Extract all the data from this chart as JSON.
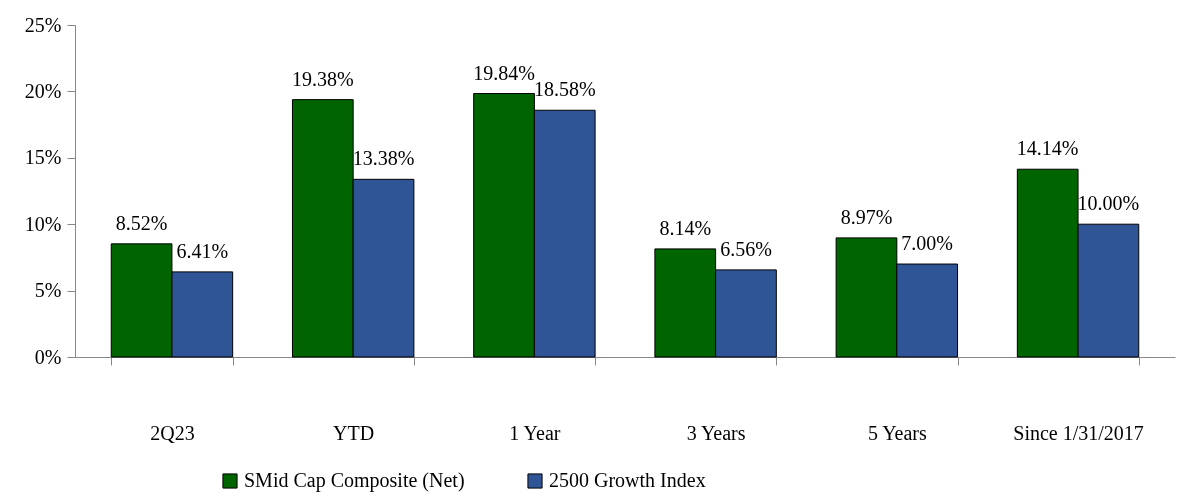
{
  "chart_data": {
    "type": "bar",
    "categories": [
      "2Q23",
      "YTD",
      "1 Year",
      "3 Years",
      "5 Years",
      "Since 1/31/2017"
    ],
    "series": [
      {
        "name": "SMid Cap Composite (Net)",
        "color": "#006400",
        "values": [
          8.52,
          19.38,
          19.84,
          8.14,
          8.97,
          14.14
        ],
        "value_labels": [
          "8.52%",
          "19.38%",
          "19.84%",
          "8.14%",
          "8.97%",
          "14.14%"
        ]
      },
      {
        "name": "2500 Growth Index",
        "color": "#2f5597",
        "values": [
          6.41,
          13.38,
          18.58,
          6.56,
          7.0,
          10.0
        ],
        "value_labels": [
          "6.41%",
          "13.38%",
          "18.58%",
          "6.56%",
          "7.00%",
          "10.00%"
        ]
      }
    ],
    "ylim": [
      0,
      25
    ],
    "yticks": [
      {
        "value": 0,
        "label": "0%"
      },
      {
        "value": 5,
        "label": "5%"
      },
      {
        "value": 10,
        "label": "10%"
      },
      {
        "value": 15,
        "label": "15%"
      },
      {
        "value": 20,
        "label": "20%"
      },
      {
        "value": 25,
        "label": "25%"
      }
    ],
    "legend": "bottom"
  }
}
